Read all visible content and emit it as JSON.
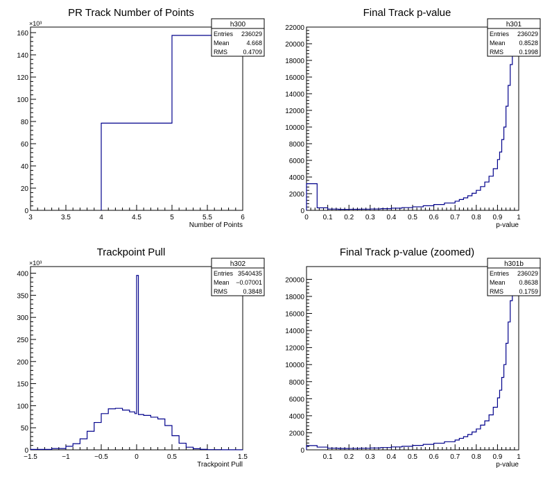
{
  "chart_data": [
    {
      "type": "histogram",
      "title": "PR Track Number of Points",
      "xlabel": "Number of Points",
      "ylabel": "",
      "y_multiplier_label": "×10³",
      "xlim": [
        3,
        6
      ],
      "ylim": [
        0,
        165000
      ],
      "xticks": [
        3,
        3.5,
        4,
        4.5,
        5,
        5.5,
        6
      ],
      "xtick_labels": [
        "3",
        "3.5",
        "4",
        "4.5",
        "5",
        "5.5",
        "6"
      ],
      "yticks": [
        0,
        20000,
        40000,
        60000,
        80000,
        100000,
        120000,
        140000,
        160000
      ],
      "ytick_labels": [
        "0",
        "20",
        "40",
        "60",
        "80",
        "100",
        "120",
        "140",
        "160"
      ],
      "stats": {
        "name": "h300",
        "rows": [
          [
            "Entries",
            "236029"
          ],
          [
            "Mean",
            "4.668"
          ],
          [
            "RMS",
            "0.4709"
          ]
        ]
      },
      "bins": {
        "x": [
          4,
          5
        ],
        "y": [
          78500,
          157500
        ]
      }
    },
    {
      "type": "histogram",
      "title": "Final Track p-value",
      "xlabel": "p-value",
      "ylabel": "",
      "xlim": [
        0,
        1
      ],
      "ylim": [
        0,
        22000
      ],
      "xticks": [
        0,
        0.1,
        0.2,
        0.3,
        0.4,
        0.5,
        0.6,
        0.7,
        0.8,
        0.9,
        1
      ],
      "xtick_labels": [
        "0",
        "0.1",
        "0.2",
        "0.3",
        "0.4",
        "0.5",
        "0.6",
        "0.7",
        "0.8",
        "0.9",
        "1"
      ],
      "yticks": [
        0,
        2000,
        4000,
        6000,
        8000,
        10000,
        12000,
        14000,
        16000,
        18000,
        20000,
        22000
      ],
      "ytick_labels": [
        "0",
        "2000",
        "4000",
        "6000",
        "8000",
        "10000",
        "12000",
        "14000",
        "16000",
        "18000",
        "20000",
        "22000"
      ],
      "stats": {
        "name": "h301",
        "rows": [
          [
            "Entries",
            "236029"
          ],
          [
            "Mean",
            "0.8528"
          ],
          [
            "RMS",
            "0.1998"
          ]
        ]
      },
      "bins": {
        "x": [
          0,
          0.05,
          0.1,
          0.15,
          0.2,
          0.25,
          0.3,
          0.35,
          0.4,
          0.45,
          0.5,
          0.55,
          0.6,
          0.65,
          0.7,
          0.72,
          0.74,
          0.76,
          0.78,
          0.8,
          0.82,
          0.84,
          0.86,
          0.88,
          0.9,
          0.91,
          0.92,
          0.93,
          0.94,
          0.95,
          0.96,
          0.97,
          0.98
        ],
        "y": [
          3200,
          300,
          150,
          120,
          130,
          140,
          160,
          200,
          260,
          330,
          420,
          550,
          700,
          880,
          1100,
          1300,
          1500,
          1750,
          2050,
          2400,
          2850,
          3400,
          4100,
          5000,
          6100,
          7000,
          8500,
          10000,
          12500,
          15000,
          17500,
          19000,
          21000
        ]
      }
    },
    {
      "type": "histogram",
      "title": "Trackpoint Pull",
      "xlabel": "Trackpoint Pull",
      "ylabel": "",
      "y_multiplier_label": "×10³",
      "xlim": [
        -1.5,
        1.5
      ],
      "ylim": [
        0,
        415000
      ],
      "xticks": [
        -1.5,
        -1,
        -0.5,
        0,
        0.5,
        1,
        1.5
      ],
      "xtick_labels": [
        "−1.5",
        "−1",
        "−0.5",
        "0",
        "0.5",
        "1",
        "1.5"
      ],
      "yticks": [
        0,
        50000,
        100000,
        150000,
        200000,
        250000,
        300000,
        350000,
        400000
      ],
      "ytick_labels": [
        "0",
        "50",
        "100",
        "150",
        "200",
        "250",
        "300",
        "350",
        "400"
      ],
      "stats": {
        "name": "h302",
        "rows": [
          [
            "Entries",
            "3540435"
          ],
          [
            "Mean",
            "−0.07001"
          ],
          [
            "RMS",
            "0.3848"
          ]
        ]
      },
      "bins": {
        "x": [
          -1.5,
          -1.2,
          -1.0,
          -0.9,
          -0.8,
          -0.7,
          -0.6,
          -0.5,
          -0.4,
          -0.3,
          -0.2,
          -0.1,
          -0.025,
          0.0,
          0.025,
          0.1,
          0.2,
          0.3,
          0.4,
          0.5,
          0.6,
          0.7,
          0.8,
          0.9,
          1.0,
          1.2
        ],
        "y": [
          1000,
          3000,
          8000,
          14000,
          25000,
          42000,
          62000,
          82000,
          93000,
          94000,
          90000,
          86000,
          82000,
          395000,
          80000,
          78000,
          74000,
          70000,
          55000,
          32000,
          15000,
          6000,
          2500,
          1200,
          500,
          200
        ]
      }
    },
    {
      "type": "histogram",
      "title": "Final Track p-value (zoomed)",
      "xlabel": "p-value",
      "ylabel": "",
      "xlim": [
        0.0,
        1.0
      ],
      "ylim": [
        0,
        21500
      ],
      "xticks": [
        0.1,
        0.2,
        0.3,
        0.4,
        0.5,
        0.6,
        0.7,
        0.8,
        0.9,
        1
      ],
      "xtick_labels": [
        "0.1",
        "0.2",
        "0.3",
        "0.4",
        "0.5",
        "0.6",
        "0.7",
        "0.8",
        "0.9",
        "1"
      ],
      "yticks": [
        0,
        2000,
        4000,
        6000,
        8000,
        10000,
        12000,
        14000,
        16000,
        18000,
        20000
      ],
      "ytick_labels": [
        "0",
        "2000",
        "4000",
        "6000",
        "8000",
        "10000",
        "12000",
        "14000",
        "16000",
        "18000",
        "20000"
      ],
      "stats": {
        "name": "h301b",
        "rows": [
          [
            "Entries",
            "236029"
          ],
          [
            "Mean",
            "0.8638"
          ],
          [
            "RMS",
            "0.1759"
          ]
        ]
      },
      "bins": {
        "x": [
          0,
          0.05,
          0.1,
          0.15,
          0.2,
          0.25,
          0.3,
          0.35,
          0.4,
          0.45,
          0.5,
          0.55,
          0.6,
          0.65,
          0.7,
          0.72,
          0.74,
          0.76,
          0.78,
          0.8,
          0.82,
          0.84,
          0.86,
          0.88,
          0.9,
          0.91,
          0.92,
          0.93,
          0.94,
          0.95,
          0.96,
          0.97,
          0.98
        ],
        "y": [
          500,
          320,
          200,
          160,
          170,
          190,
          220,
          270,
          340,
          420,
          520,
          640,
          780,
          950,
          1150,
          1350,
          1550,
          1800,
          2100,
          2450,
          2900,
          3400,
          4100,
          5000,
          6100,
          7000,
          8500,
          10000,
          12500,
          15000,
          17500,
          19000,
          21000
        ]
      }
    }
  ]
}
